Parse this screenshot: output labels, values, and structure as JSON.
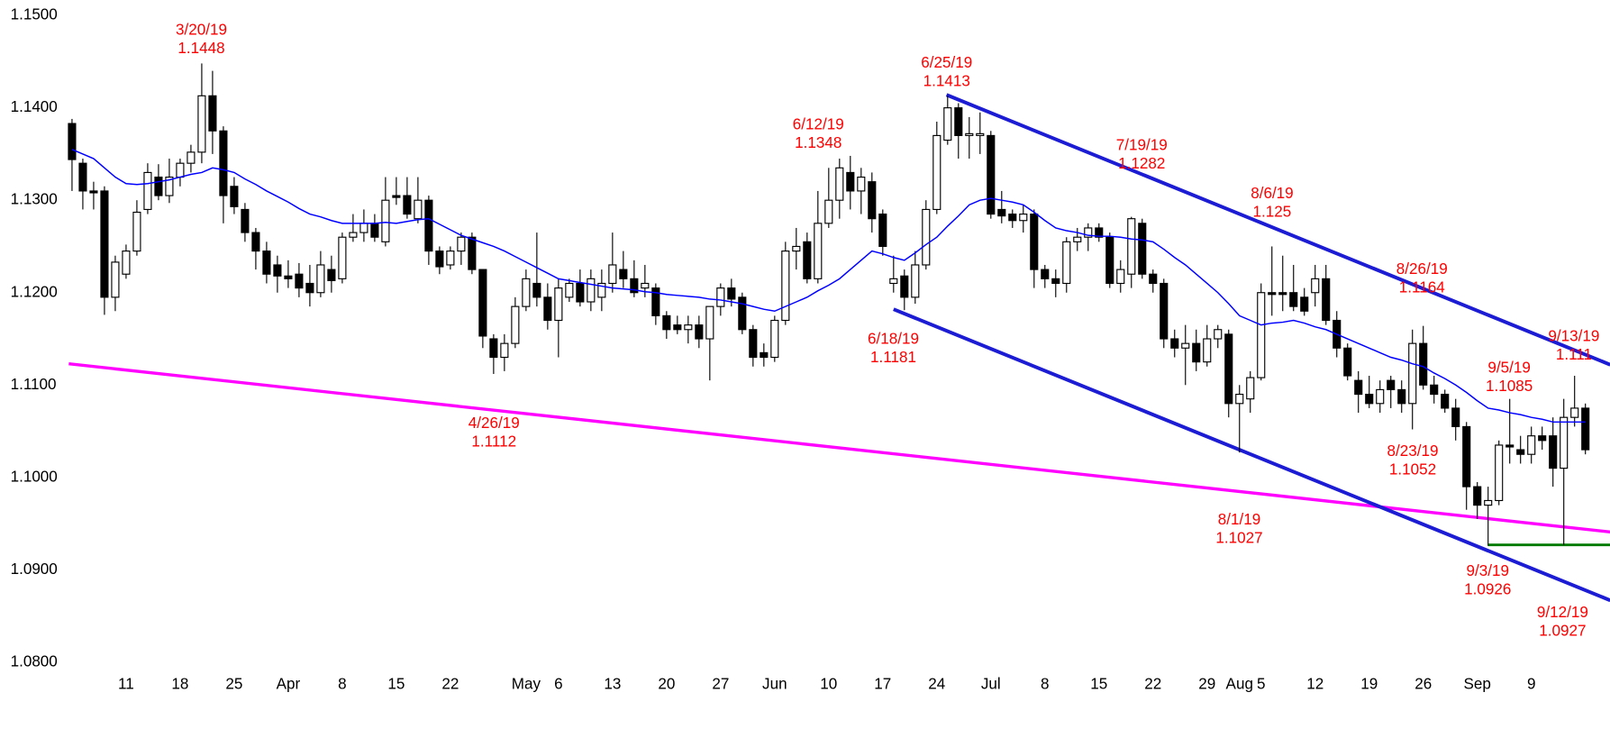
{
  "chart_data": {
    "type": "candlestick",
    "categories": [
      null,
      null,
      null,
      null,
      null,
      "11",
      null,
      null,
      null,
      null,
      "18",
      null,
      null,
      null,
      null,
      "25",
      null,
      null,
      null,
      null,
      "Apr",
      null,
      null,
      null,
      null,
      "8",
      null,
      null,
      null,
      null,
      "15",
      null,
      null,
      null,
      null,
      "22",
      null,
      null,
      null,
      null,
      null,
      null,
      "May",
      null,
      null,
      "6",
      null,
      null,
      null,
      null,
      "13",
      null,
      null,
      null,
      null,
      "20",
      null,
      null,
      null,
      null,
      "27",
      null,
      null,
      null,
      null,
      "Jun",
      null,
      null,
      null,
      null,
      "10",
      null,
      null,
      null,
      null,
      "17",
      null,
      null,
      null,
      null,
      "24",
      null,
      null,
      null,
      null,
      "Jul",
      null,
      null,
      null,
      null,
      "8",
      null,
      null,
      null,
      null,
      "15",
      null,
      null,
      null,
      null,
      "22",
      null,
      null,
      null,
      null,
      "29",
      null,
      null,
      "Aug",
      null,
      "5",
      null,
      null,
      null,
      null,
      "12",
      null,
      null,
      null,
      null,
      "19",
      null,
      null,
      null,
      null,
      "26",
      null,
      null,
      null,
      null,
      "Sep",
      null,
      null,
      null,
      null,
      "9",
      null,
      null,
      null,
      null,
      null
    ],
    "candles": [
      [
        1.1383,
        1.1388,
        1.131,
        1.1344
      ],
      [
        1.134,
        1.1345,
        1.129,
        1.131
      ],
      [
        1.131,
        1.132,
        1.129,
        1.1308
      ],
      [
        1.131,
        1.1315,
        1.1176,
        1.1195
      ],
      [
        1.1195,
        1.124,
        1.118,
        1.1233
      ],
      [
        1.122,
        1.1252,
        1.1215,
        1.1245
      ],
      [
        1.1245,
        1.13,
        1.124,
        1.1287
      ],
      [
        1.129,
        1.134,
        1.1285,
        1.133
      ],
      [
        1.1325,
        1.1339,
        1.13,
        1.1305
      ],
      [
        1.1305,
        1.1345,
        1.1297,
        1.1325
      ],
      [
        1.1325,
        1.1345,
        1.1315,
        1.134
      ],
      [
        1.134,
        1.136,
        1.133,
        1.1352
      ],
      [
        1.1352,
        1.1448,
        1.134,
        1.1413
      ],
      [
        1.1413,
        1.144,
        1.135,
        1.1375
      ],
      [
        1.1375,
        1.138,
        1.1275,
        1.1305
      ],
      [
        1.1315,
        1.1325,
        1.1285,
        1.1293
      ],
      [
        1.129,
        1.1297,
        1.1255,
        1.1265
      ],
      [
        1.1265,
        1.127,
        1.1225,
        1.1245
      ],
      [
        1.1245,
        1.1255,
        1.121,
        1.122
      ],
      [
        1.123,
        1.124,
        1.12,
        1.1218
      ],
      [
        1.1218,
        1.1235,
        1.1205,
        1.1215
      ],
      [
        1.122,
        1.1232,
        1.1195,
        1.1205
      ],
      [
        1.121,
        1.123,
        1.1185,
        1.12
      ],
      [
        1.12,
        1.1245,
        1.1195,
        1.123
      ],
      [
        1.1225,
        1.124,
        1.12,
        1.1213
      ],
      [
        1.1215,
        1.1265,
        1.121,
        1.126
      ],
      [
        1.126,
        1.1285,
        1.1255,
        1.1265
      ],
      [
        1.1265,
        1.129,
        1.1255,
        1.1275
      ],
      [
        1.1275,
        1.1285,
        1.1255,
        1.126
      ],
      [
        1.1255,
        1.1325,
        1.125,
        1.13
      ],
      [
        1.1305,
        1.1325,
        1.1295,
        1.1303
      ],
      [
        1.1305,
        1.1325,
        1.128,
        1.1285
      ],
      [
        1.128,
        1.1325,
        1.1275,
        1.13
      ],
      [
        1.13,
        1.1305,
        1.123,
        1.1245
      ],
      [
        1.1245,
        1.125,
        1.122,
        1.1228
      ],
      [
        1.123,
        1.125,
        1.1225,
        1.1245
      ],
      [
        1.1245,
        1.1265,
        1.123,
        1.126
      ],
      [
        1.126,
        1.1265,
        1.122,
        1.1225
      ],
      [
        1.1225,
        1.1225,
        1.114,
        1.1153
      ],
      [
        1.115,
        1.1155,
        1.1112,
        1.113
      ],
      [
        1.113,
        1.1155,
        1.1115,
        1.1145
      ],
      [
        1.1145,
        1.1195,
        1.114,
        1.1185
      ],
      [
        1.1185,
        1.1225,
        1.118,
        1.1215
      ],
      [
        1.121,
        1.1265,
        1.1185,
        1.1195
      ],
      [
        1.1195,
        1.121,
        1.116,
        1.117
      ],
      [
        1.117,
        1.1215,
        1.113,
        1.1205
      ],
      [
        1.1195,
        1.1215,
        1.119,
        1.121
      ],
      [
        1.121,
        1.1225,
        1.1185,
        1.119
      ],
      [
        1.119,
        1.1225,
        1.118,
        1.1215
      ],
      [
        1.1195,
        1.1225,
        1.118,
        1.121
      ],
      [
        1.121,
        1.1265,
        1.12,
        1.123
      ],
      [
        1.1225,
        1.1245,
        1.1205,
        1.1215
      ],
      [
        1.1215,
        1.1235,
        1.1195,
        1.12
      ],
      [
        1.1205,
        1.123,
        1.1195,
        1.121
      ],
      [
        1.1205,
        1.121,
        1.1165,
        1.1175
      ],
      [
        1.1175,
        1.118,
        1.115,
        1.116
      ],
      [
        1.1165,
        1.1175,
        1.1155,
        1.116
      ],
      [
        1.116,
        1.1175,
        1.1145,
        1.1165
      ],
      [
        1.1165,
        1.1175,
        1.114,
        1.115
      ],
      [
        1.115,
        1.1185,
        1.1105,
        1.1185
      ],
      [
        1.1185,
        1.121,
        1.1175,
        1.1205
      ],
      [
        1.1205,
        1.1215,
        1.1185,
        1.1193
      ],
      [
        1.1195,
        1.12,
        1.1155,
        1.116
      ],
      [
        1.116,
        1.1165,
        1.112,
        1.113
      ],
      [
        1.1135,
        1.1145,
        1.112,
        1.113
      ],
      [
        1.113,
        1.1175,
        1.1125,
        1.117
      ],
      [
        1.117,
        1.1255,
        1.1165,
        1.1245
      ],
      [
        1.1245,
        1.127,
        1.1225,
        1.125
      ],
      [
        1.1255,
        1.1265,
        1.121,
        1.1215
      ],
      [
        1.1215,
        1.131,
        1.121,
        1.1275
      ],
      [
        1.1275,
        1.1335,
        1.127,
        1.13
      ],
      [
        1.13,
        1.1345,
        1.128,
        1.1335
      ],
      [
        1.133,
        1.1348,
        1.129,
        1.131
      ],
      [
        1.131,
        1.1335,
        1.1285,
        1.1325
      ],
      [
        1.132,
        1.133,
        1.1265,
        1.128
      ],
      [
        1.1285,
        1.129,
        1.124,
        1.125
      ],
      [
        1.121,
        1.124,
        1.12,
        1.1215
      ],
      [
        1.1218,
        1.1225,
        1.1181,
        1.1195
      ],
      [
        1.1195,
        1.1245,
        1.1188,
        1.123
      ],
      [
        1.123,
        1.13,
        1.1225,
        1.129
      ],
      [
        1.129,
        1.1385,
        1.1285,
        1.137
      ],
      [
        1.1365,
        1.1413,
        1.136,
        1.14
      ],
      [
        1.14,
        1.1405,
        1.1345,
        1.137
      ],
      [
        1.137,
        1.139,
        1.1345,
        1.1372
      ],
      [
        1.137,
        1.1395,
        1.135,
        1.1372
      ],
      [
        1.137,
        1.1375,
        1.128,
        1.1285
      ],
      [
        1.129,
        1.131,
        1.1275,
        1.1283
      ],
      [
        1.1285,
        1.129,
        1.127,
        1.1278
      ],
      [
        1.1278,
        1.1295,
        1.1265,
        1.1285
      ],
      [
        1.1285,
        1.129,
        1.1205,
        1.1225
      ],
      [
        1.1225,
        1.123,
        1.1205,
        1.1215
      ],
      [
        1.1215,
        1.1225,
        1.1195,
        1.121
      ],
      [
        1.121,
        1.126,
        1.12,
        1.1255
      ],
      [
        1.1255,
        1.127,
        1.1245,
        1.126
      ],
      [
        1.126,
        1.1275,
        1.1245,
        1.127
      ],
      [
        1.127,
        1.1275,
        1.1255,
        1.126
      ],
      [
        1.126,
        1.1265,
        1.1205,
        1.121
      ],
      [
        1.121,
        1.1235,
        1.12,
        1.1225
      ],
      [
        1.122,
        1.1282,
        1.1205,
        1.128
      ],
      [
        1.1275,
        1.128,
        1.1215,
        1.122
      ],
      [
        1.122,
        1.1225,
        1.12,
        1.121
      ],
      [
        1.121,
        1.1215,
        1.114,
        1.115
      ],
      [
        1.115,
        1.116,
        1.113,
        1.114
      ],
      [
        1.114,
        1.1165,
        1.11,
        1.1145
      ],
      [
        1.1145,
        1.116,
        1.1115,
        1.1125
      ],
      [
        1.1125,
        1.1165,
        1.112,
        1.115
      ],
      [
        1.115,
        1.1165,
        1.114,
        1.116
      ],
      [
        1.1155,
        1.116,
        1.1065,
        1.108
      ],
      [
        1.108,
        1.11,
        1.1027,
        1.109
      ],
      [
        1.1085,
        1.1115,
        1.107,
        1.1108
      ],
      [
        1.1108,
        1.121,
        1.1105,
        1.12
      ],
      [
        1.12,
        1.125,
        1.1175,
        1.1198
      ],
      [
        1.12,
        1.124,
        1.118,
        1.1198
      ],
      [
        1.12,
        1.123,
        1.118,
        1.1185
      ],
      [
        1.1195,
        1.1205,
        1.1175,
        1.118
      ],
      [
        1.12,
        1.123,
        1.1185,
        1.1215
      ],
      [
        1.1215,
        1.123,
        1.1165,
        1.117
      ],
      [
        1.117,
        1.118,
        1.113,
        1.114
      ],
      [
        1.114,
        1.1145,
        1.1105,
        1.111
      ],
      [
        1.1105,
        1.1115,
        1.107,
        1.109
      ],
      [
        1.109,
        1.111,
        1.1075,
        1.108
      ],
      [
        1.108,
        1.1105,
        1.107,
        1.1095
      ],
      [
        1.1105,
        1.111,
        1.1075,
        1.1095
      ],
      [
        1.1095,
        1.1105,
        1.107,
        1.108
      ],
      [
        1.108,
        1.116,
        1.1052,
        1.1145
      ],
      [
        1.1145,
        1.1164,
        1.1095,
        1.11
      ],
      [
        1.11,
        1.111,
        1.108,
        1.109
      ],
      [
        1.109,
        1.1095,
        1.107,
        1.1075
      ],
      [
        1.1075,
        1.1085,
        1.104,
        1.1055
      ],
      [
        1.1055,
        1.106,
        1.0965,
        1.099
      ],
      [
        1.099,
        1.0995,
        1.0955,
        1.097
      ],
      [
        1.097,
        1.099,
        1.0926,
        1.0975
      ],
      [
        1.0975,
        1.104,
        1.097,
        1.1035
      ],
      [
        1.1035,
        1.1085,
        1.1015,
        1.1033
      ],
      [
        1.103,
        1.1045,
        1.1015,
        1.1025
      ],
      [
        1.1025,
        1.1055,
        1.1015,
        1.1045
      ],
      [
        1.1045,
        1.1055,
        1.103,
        1.104
      ],
      [
        1.1045,
        1.1065,
        1.099,
        1.101
      ],
      [
        1.101,
        1.1085,
        1.0927,
        1.1065
      ],
      [
        1.1065,
        1.111,
        1.1055,
        1.1075
      ],
      [
        1.1075,
        1.108,
        1.1025,
        1.103
      ]
    ],
    "candle_colors": {
      "up": "#ffffff",
      "down": "#000000",
      "edge": "#000000"
    },
    "moving_average": {
      "color": "#0000ff",
      "values": [
        1.1355,
        1.135,
        1.1345,
        1.1335,
        1.1325,
        1.1318,
        1.1317,
        1.1318,
        1.132,
        1.1322,
        1.1325,
        1.1328,
        1.133,
        1.1335,
        1.1333,
        1.133,
        1.1323,
        1.1317,
        1.131,
        1.1304,
        1.1298,
        1.1291,
        1.1285,
        1.1282,
        1.1278,
        1.1275,
        1.1275,
        1.1275,
        1.1275,
        1.1276,
        1.1275,
        1.1277,
        1.1279,
        1.128,
        1.1274,
        1.1268,
        1.1262,
        1.1258,
        1.1254,
        1.125,
        1.1245,
        1.1239,
        1.1233,
        1.1227,
        1.1221,
        1.1215,
        1.1213,
        1.1211,
        1.1209,
        1.1207,
        1.1205,
        1.1204,
        1.1203,
        1.1201,
        1.12,
        1.1198,
        1.1197,
        1.1196,
        1.1195,
        1.1193,
        1.1192,
        1.119,
        1.1188,
        1.1185,
        1.1182,
        1.118,
        1.1185,
        1.119,
        1.1195,
        1.1202,
        1.1208,
        1.1215,
        1.1225,
        1.1235,
        1.1245,
        1.1242,
        1.1238,
        1.1235,
        1.1243,
        1.1252,
        1.126,
        1.1272,
        1.1283,
        1.1295,
        1.13,
        1.1302,
        1.13,
        1.1298,
        1.1295,
        1.1287,
        1.1278,
        1.127,
        1.1267,
        1.1265,
        1.1262,
        1.1261,
        1.1261,
        1.126,
        1.1258,
        1.1257,
        1.1255,
        1.1247,
        1.1238,
        1.123,
        1.122,
        1.121,
        1.12,
        1.1188,
        1.1175,
        1.117,
        1.1165,
        1.1167,
        1.1168,
        1.117,
        1.1167,
        1.1163,
        1.116,
        1.1155,
        1.115,
        1.1145,
        1.114,
        1.1135,
        1.113,
        1.1127,
        1.1123,
        1.112,
        1.1113,
        1.1107,
        1.11,
        1.1092,
        1.1083,
        1.1075,
        1.1073,
        1.107,
        1.1068,
        1.1065,
        1.1063,
        1.106,
        1.106,
        1.106,
        1.106
      ]
    },
    "trendlines": [
      {
        "color": "#ff00ff",
        "x": [
          -0.3,
          142.3
        ],
        "y": [
          1.1123,
          1.0941
        ]
      },
      {
        "color": "#1c1cd4",
        "x": [
          80.9,
          142.3
        ],
        "y": [
          1.1414,
          1.1122
        ]
      },
      {
        "color": "#1c1cd4",
        "x": [
          76,
          142.3
        ],
        "y": [
          1.1182,
          1.0867
        ]
      },
      {
        "color": "#007a00",
        "x": [
          131,
          142.3
        ],
        "y": [
          1.0927,
          1.0927
        ]
      }
    ],
    "annotations": [
      {
        "date": "3/20/19",
        "value": 1.1448
      },
      {
        "date": "6/25/19",
        "value": 1.1413
      },
      {
        "date": "6/12/19",
        "value": 1.1348
      },
      {
        "date": "7/19/19",
        "value": 1.1282
      },
      {
        "date": "8/6/19",
        "value": 1.125
      },
      {
        "date": "8/26/19",
        "value": 1.1164
      },
      {
        "date": "9/13/19",
        "value": 1.111
      },
      {
        "date": "9/5/19",
        "value": 1.1085
      },
      {
        "date": "6/18/19",
        "value": 1.1181
      },
      {
        "date": "4/26/19",
        "value": 1.1112
      },
      {
        "date": "8/23/19",
        "value": 1.1052
      },
      {
        "date": "8/1/19",
        "value": 1.1027
      },
      {
        "date": "9/3/19",
        "value": 1.0926
      },
      {
        "date": "9/12/19",
        "value": 1.0927
      }
    ],
    "annotation_color": "#ff0000",
    "ylim": [
      1.08,
      1.15
    ],
    "yticks": [
      {
        "value": 1.08,
        "label": "1.0800"
      },
      {
        "value": 1.09,
        "label": "1.0900"
      },
      {
        "value": 1.1,
        "label": "1.1000"
      },
      {
        "value": 1.11,
        "label": "1.1100"
      },
      {
        "value": 1.12,
        "label": "1.1200"
      },
      {
        "value": 1.13,
        "label": "1.1300"
      },
      {
        "value": 1.14,
        "label": "1.1400"
      },
      {
        "value": 1.15,
        "label": "1.1500"
      }
    ],
    "grid": false
  }
}
